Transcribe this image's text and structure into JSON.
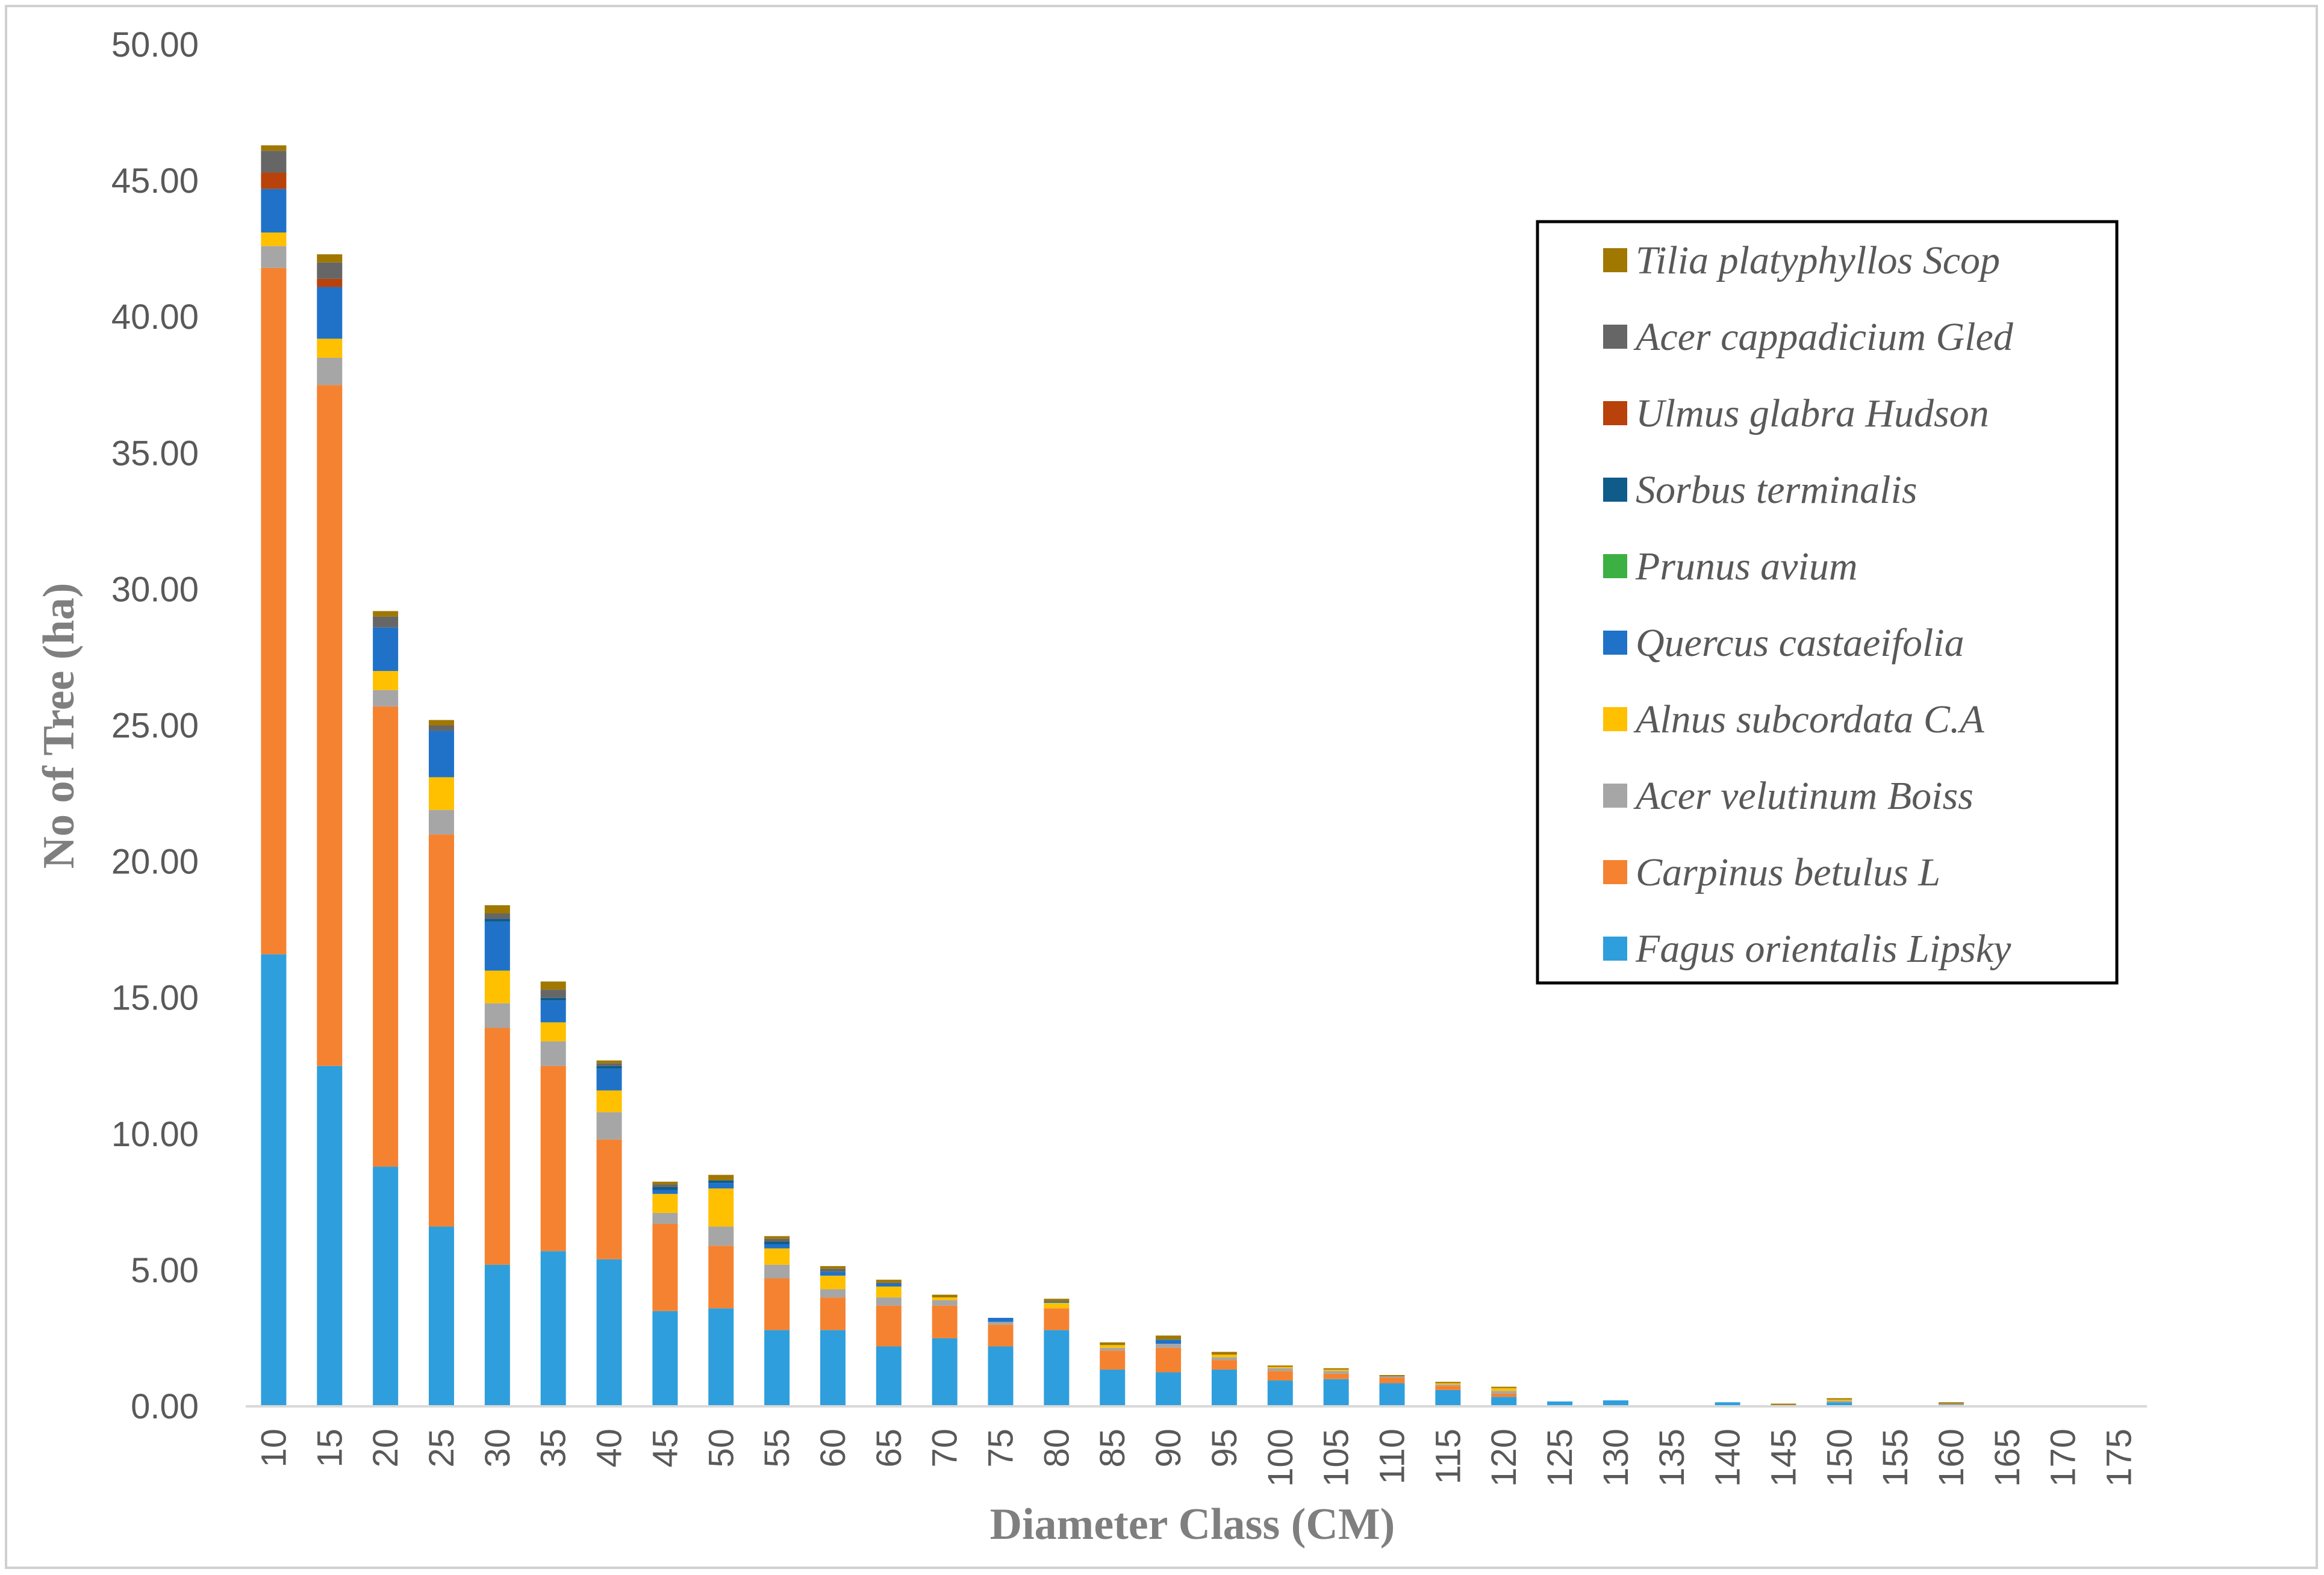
{
  "chart_data": {
    "type": "stacked-bar",
    "title": "",
    "xlabel": "Diameter Class (CM)",
    "ylabel": "No of Tree (ha)",
    "ylim": [
      0,
      50
    ],
    "yticks": [
      "0.00",
      "5.00",
      "10.00",
      "15.00",
      "20.00",
      "25.00",
      "30.00",
      "35.00",
      "40.00",
      "45.00",
      "50.00"
    ],
    "categories": [
      "10",
      "15",
      "20",
      "25",
      "30",
      "35",
      "40",
      "45",
      "50",
      "55",
      "60",
      "65",
      "70",
      "75",
      "80",
      "85",
      "90",
      "95",
      "100",
      "105",
      "110",
      "115",
      "120",
      "125",
      "130",
      "135",
      "140",
      "145",
      "150",
      "155",
      "160",
      "165",
      "170",
      "175"
    ],
    "legend_position": "right",
    "series": [
      {
        "name": "Fagus orientalis Lipsky",
        "color": "#2E9FDC",
        "values": [
          16.6,
          12.5,
          8.8,
          6.6,
          5.2,
          5.7,
          5.4,
          3.5,
          3.6,
          2.8,
          2.8,
          2.2,
          2.5,
          2.2,
          2.8,
          1.35,
          1.25,
          1.35,
          0.95,
          1.0,
          0.85,
          0.6,
          0.35,
          0.18,
          0.22,
          0,
          0.15,
          0,
          0.15,
          0,
          0,
          0,
          0,
          0
        ]
      },
      {
        "name": "Carpinus betulus L",
        "color": "#F58231",
        "values": [
          25.2,
          25.0,
          16.9,
          14.4,
          8.7,
          6.8,
          4.4,
          3.2,
          2.3,
          1.9,
          1.2,
          1.5,
          1.2,
          0.8,
          0.8,
          0.7,
          0.9,
          0.35,
          0.35,
          0.2,
          0.2,
          0.15,
          0.12,
          0,
          0,
          0,
          0,
          0,
          0,
          0,
          0,
          0,
          0,
          0
        ]
      },
      {
        "name": "Acer velutinum Boiss",
        "color": "#A6A6A6",
        "values": [
          0.8,
          1.0,
          0.6,
          0.9,
          0.9,
          0.9,
          1.0,
          0.4,
          0.7,
          0.5,
          0.3,
          0.3,
          0.2,
          0.1,
          0,
          0.1,
          0.15,
          0.1,
          0.1,
          0.1,
          0.05,
          0.05,
          0.1,
          0,
          0,
          0,
          0,
          0.05,
          0.05,
          0,
          0.1,
          0,
          0,
          0
        ]
      },
      {
        "name": "Alnus subcordata C.A",
        "color": "#FFC000",
        "values": [
          0.5,
          0.7,
          0.7,
          1.2,
          1.2,
          0.7,
          0.8,
          0.7,
          1.4,
          0.6,
          0.5,
          0.4,
          0.1,
          0,
          0.2,
          0.1,
          0,
          0.1,
          0.05,
          0.05,
          0,
          0.05,
          0.1,
          0,
          0,
          0,
          0,
          0,
          0.05,
          0,
          0,
          0,
          0,
          0
        ]
      },
      {
        "name": "Quercus castaeifolia",
        "color": "#1F72C8",
        "values": [
          1.6,
          1.9,
          1.6,
          1.7,
          1.8,
          0.8,
          0.8,
          0.15,
          0.2,
          0.15,
          0.15,
          0.1,
          0,
          0.15,
          0.05,
          0,
          0.15,
          0,
          0,
          0,
          0,
          0,
          0,
          0,
          0,
          0,
          0,
          0,
          0,
          0,
          0,
          0,
          0,
          0
        ]
      },
      {
        "name": "Prunus avium",
        "color": "#3CB043",
        "values": [
          0,
          0,
          0,
          0,
          0,
          0,
          0,
          0,
          0,
          0,
          0,
          0,
          0,
          0,
          0,
          0,
          0,
          0,
          0,
          0,
          0,
          0,
          0,
          0,
          0,
          0,
          0,
          0,
          0,
          0,
          0,
          0,
          0,
          0
        ]
      },
      {
        "name": "Sorbus terminalis",
        "color": "#0F5C8A",
        "values": [
          0,
          0,
          0,
          0,
          0.1,
          0.1,
          0.1,
          0.1,
          0.1,
          0.1,
          0,
          0,
          0,
          0,
          0,
          0,
          0,
          0,
          0,
          0,
          0,
          0,
          0,
          0,
          0,
          0,
          0,
          0,
          0,
          0,
          0,
          0,
          0,
          0
        ]
      },
      {
        "name": "Ulmus glabra Hudson",
        "color": "#B8420A",
        "values": [
          0.6,
          0.3,
          0,
          0,
          0,
          0,
          0,
          0,
          0,
          0,
          0,
          0,
          0,
          0,
          0,
          0,
          0,
          0,
          0,
          0,
          0,
          0,
          0,
          0,
          0,
          0,
          0,
          0,
          0,
          0,
          0,
          0,
          0,
          0
        ]
      },
      {
        "name": "Acer cappadicium Gled",
        "color": "#666666",
        "values": [
          0.8,
          0.6,
          0.4,
          0.2,
          0.2,
          0.3,
          0.1,
          0.1,
          0,
          0.1,
          0.1,
          0.05,
          0,
          0,
          0,
          0,
          0,
          0,
          0,
          0,
          0,
          0,
          0,
          0,
          0,
          0,
          0,
          0,
          0,
          0,
          0,
          0,
          0,
          0
        ]
      },
      {
        "name": "Tilia platyphyllos Scop",
        "color": "#A07800",
        "values": [
          0.2,
          0.3,
          0.2,
          0.2,
          0.3,
          0.3,
          0.1,
          0.1,
          0.2,
          0.1,
          0.1,
          0.1,
          0.1,
          0,
          0.1,
          0.1,
          0.15,
          0.1,
          0.05,
          0.05,
          0.05,
          0.05,
          0.05,
          0,
          0,
          0,
          0,
          0.05,
          0.05,
          0,
          0.05,
          0,
          0,
          0
        ]
      }
    ]
  }
}
